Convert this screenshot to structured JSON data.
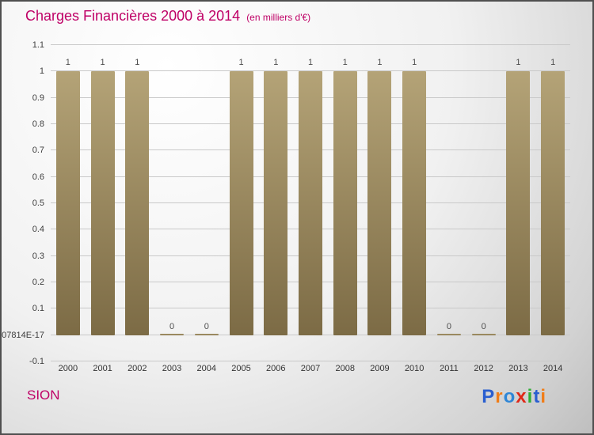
{
  "title": "Charges Financières 2000 à 2014",
  "subtitle": "(en milliers d'€)",
  "footer": {
    "brand": "SION"
  },
  "logo": {
    "text": "Proxiti",
    "letters": [
      {
        "ch": "P",
        "color": "#2a5fd0"
      },
      {
        "ch": "r",
        "color": "#f07d18"
      },
      {
        "ch": "o",
        "color": "#2f86d6"
      },
      {
        "ch": "x",
        "color": "#e02818"
      },
      {
        "ch": "i",
        "color": "#2fae35"
      },
      {
        "ch": "t",
        "color": "#2a5fd0"
      },
      {
        "ch": "i",
        "color": "#f07d18"
      }
    ]
  },
  "chart_data": {
    "type": "bar",
    "title": "Charges Financières 2000 à 2014",
    "subtitle": "(en milliers d'€)",
    "categories": [
      "2000",
      "2001",
      "2002",
      "2003",
      "2004",
      "2005",
      "2006",
      "2007",
      "2008",
      "2009",
      "2010",
      "2011",
      "2012",
      "2013",
      "2014"
    ],
    "values": [
      1,
      1,
      1,
      0,
      0,
      1,
      1,
      1,
      1,
      1,
      1,
      0,
      0,
      1,
      1
    ],
    "bar_labels": [
      "1",
      "1",
      "1",
      "0",
      "0",
      "1",
      "1",
      "1",
      "1",
      "1",
      "1",
      "0",
      "0",
      "1",
      "1"
    ],
    "ylim": [
      -0.1,
      1.1
    ],
    "ytick_values": [
      1.1,
      1,
      0.9,
      0.8,
      0.7,
      0.6,
      0.5,
      0.4,
      0.3,
      0.2,
      0.1,
      0,
      -0.1
    ],
    "ytick_labels": [
      "1.1",
      "1",
      "0.9",
      "0.8",
      "0.7",
      "0.6",
      "0.5",
      "0.4",
      "0.3",
      "0.2",
      "0.1",
      "07814E-17",
      "-0.1"
    ],
    "grid": true,
    "legend_position": "none",
    "bar_color_top": "#b4a377",
    "bar_color_bottom": "#7c6b45",
    "grid_color": "#c9c9c9",
    "label_color": "#4d4d4d",
    "accent_color": "#bf0066"
  }
}
